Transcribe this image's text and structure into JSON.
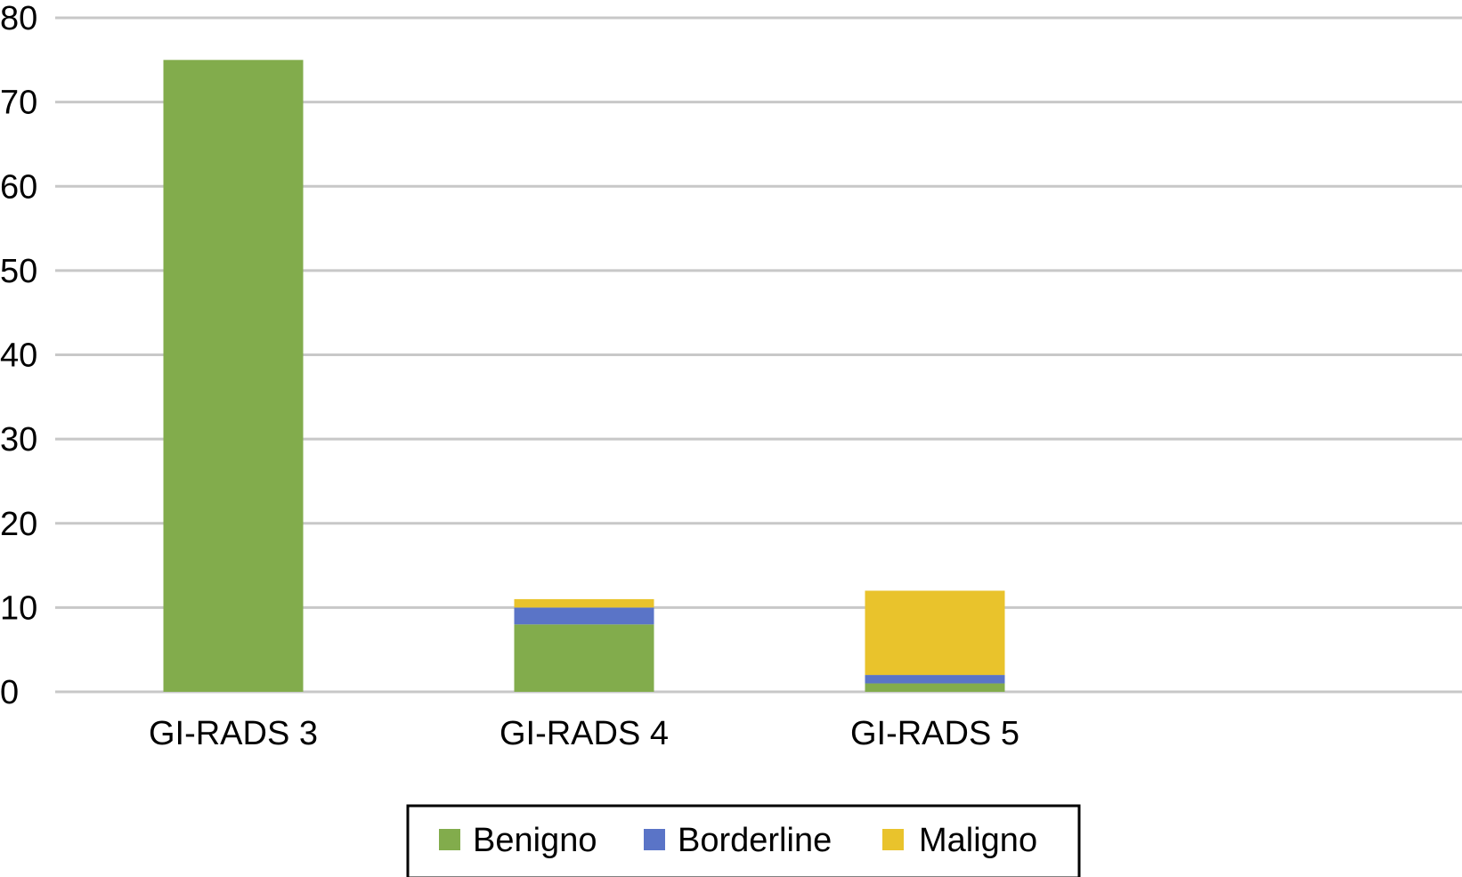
{
  "chart_data": {
    "type": "bar",
    "stacked": true,
    "categories": [
      "GI-RADS 3",
      "GI-RADS 4",
      "GI-RADS 5"
    ],
    "series": [
      {
        "name": "Benigno",
        "values": [
          75,
          8,
          1
        ],
        "color": "#82ac4c"
      },
      {
        "name": "Borderline",
        "values": [
          0,
          2,
          1
        ],
        "color": "#5a74c7"
      },
      {
        "name": "Maligno",
        "values": [
          0,
          1,
          10
        ],
        "color": "#e9c32c"
      }
    ],
    "yticks": [
      "0",
      "10",
      "20",
      "30",
      "40",
      "50",
      "60",
      "70",
      "80"
    ],
    "ylim": [
      0,
      80
    ],
    "grid": true,
    "legend_position": "bottom",
    "title": "",
    "xlabel": "",
    "ylabel": ""
  }
}
